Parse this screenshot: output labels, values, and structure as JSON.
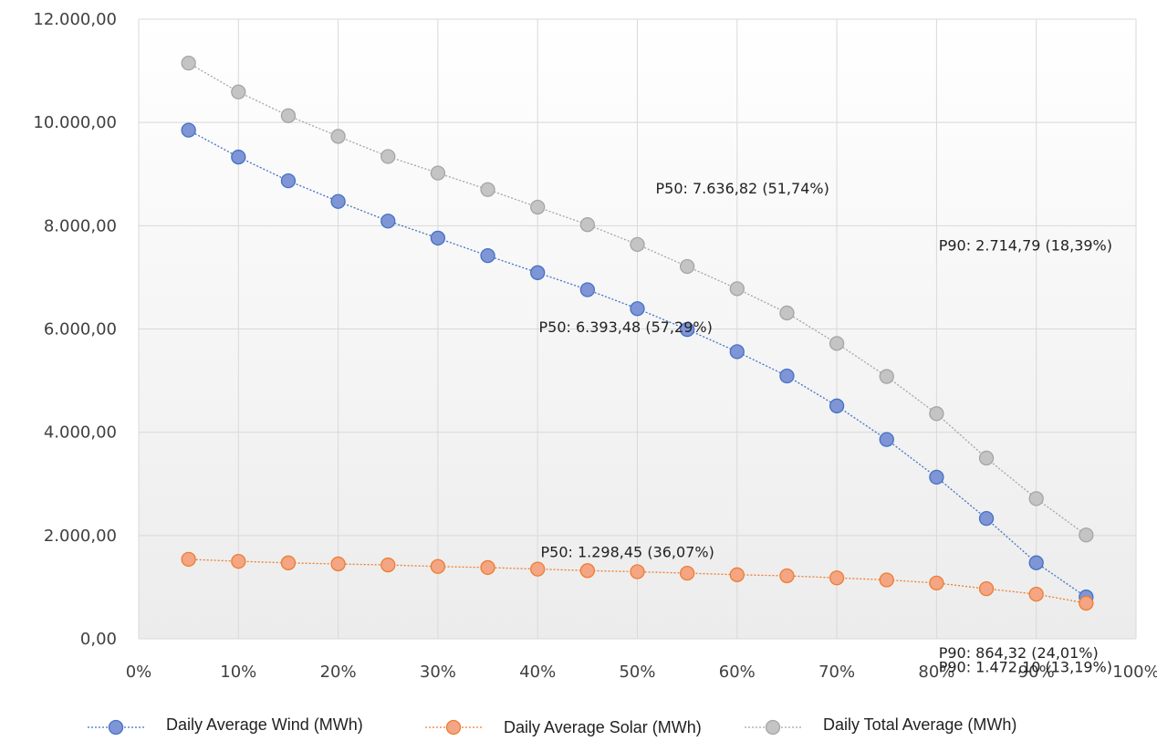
{
  "chart_data": {
    "type": "line",
    "x": [
      5,
      10,
      15,
      20,
      25,
      30,
      35,
      40,
      45,
      50,
      55,
      60,
      65,
      70,
      75,
      80,
      85,
      90,
      95
    ],
    "xlim": [
      0,
      100
    ],
    "ylim": [
      0,
      12000
    ],
    "x_ticks": [
      "0%",
      "10%",
      "20%",
      "30%",
      "40%",
      "50%",
      "60%",
      "70%",
      "80%",
      "90%",
      "100%"
    ],
    "y_ticks": [
      "0,00",
      "2.000,00",
      "4.000,00",
      "6.000,00",
      "8.000,00",
      "10.000,00",
      "12.000,00"
    ],
    "grid": "vertical and horizontal",
    "legend_position": "bottom",
    "series": [
      {
        "name": "Daily Average Wind (MWh)",
        "color": "#4472c4",
        "marker_fill": "#7f95d6",
        "values": [
          9850,
          9330,
          8870,
          8470,
          8090,
          7760,
          7420,
          7090,
          6760,
          6393.48,
          5990,
          5560,
          5090,
          4510,
          3860,
          3130,
          2330,
          1472.1,
          810
        ]
      },
      {
        "name": "Daily Average Solar (MWh)",
        "color": "#ed7d31",
        "marker_fill": "#f4a583",
        "values": [
          1540,
          1500,
          1470,
          1450,
          1430,
          1400,
          1380,
          1350,
          1320,
          1298.45,
          1270,
          1240,
          1220,
          1180,
          1140,
          1080,
          970,
          864.32,
          690
        ]
      },
      {
        "name": "Daily Total Average (MWh)",
        "color": "#a5a5a5",
        "marker_fill": "#c4c4c4",
        "values": [
          11150,
          10590,
          10130,
          9730,
          9340,
          9020,
          8700,
          8360,
          8020,
          7636.82,
          7210,
          6780,
          6310,
          5720,
          5080,
          4360,
          3500,
          2714.79,
          2010
        ]
      }
    ],
    "annotations": [
      {
        "text": "P50: 7.636,82 (51,74%)",
        "x": 50,
        "y": 7636.82
      },
      {
        "text": "P50: 6.393,48 (57,29%)",
        "x": 50,
        "y": 6393.48
      },
      {
        "text": "P90: 2.714,79 (18,39%)",
        "x": 90,
        "y": 2714.79
      },
      {
        "text": "P90: 1.472,10 (13,19%)",
        "x": 90,
        "y": 1472.1
      },
      {
        "text": "P50: 1.298,45 (36,07%)",
        "x": 50,
        "y": 1298.45
      },
      {
        "text": "P90: 864,32 (24,01%)",
        "x": 90,
        "y": 864.32
      }
    ]
  }
}
